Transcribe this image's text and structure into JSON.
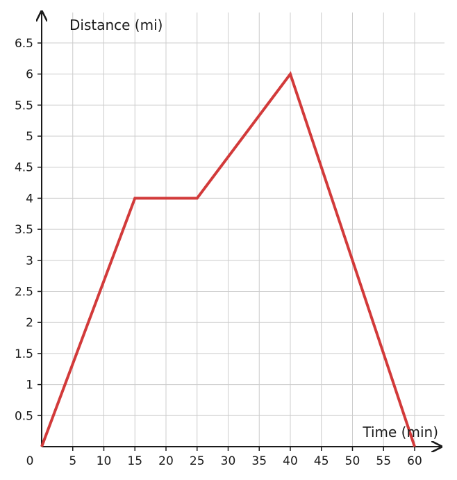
{
  "chart_data": {
    "type": "line",
    "xlabel": "Time (min)",
    "ylabel": "Distance (mi)",
    "origin_label": "0",
    "xlim": [
      0,
      64
    ],
    "ylim": [
      0,
      6.5
    ],
    "grid": true,
    "x_ticks": [
      5,
      10,
      15,
      20,
      25,
      30,
      35,
      40,
      45,
      50,
      55,
      60
    ],
    "x_tick_labels": [
      "5",
      "10",
      "15",
      "20",
      "25",
      "30",
      "35",
      "40",
      "45",
      "50",
      "55",
      "60"
    ],
    "y_ticks": [
      0.5,
      1,
      1.5,
      2,
      2.5,
      3,
      3.5,
      4,
      4.5,
      5,
      5.5,
      6,
      6.5
    ],
    "y_tick_labels": [
      "0.5",
      "1",
      "1.5",
      "2",
      "2.5",
      "3",
      "3.5",
      "4",
      "4.5",
      "5",
      "5.5",
      "6",
      "6.5"
    ],
    "series": [
      {
        "color": "#d23a3a",
        "x": [
          0,
          15,
          25,
          40,
          60
        ],
        "y": [
          0,
          4,
          4,
          6,
          0
        ]
      }
    ]
  }
}
